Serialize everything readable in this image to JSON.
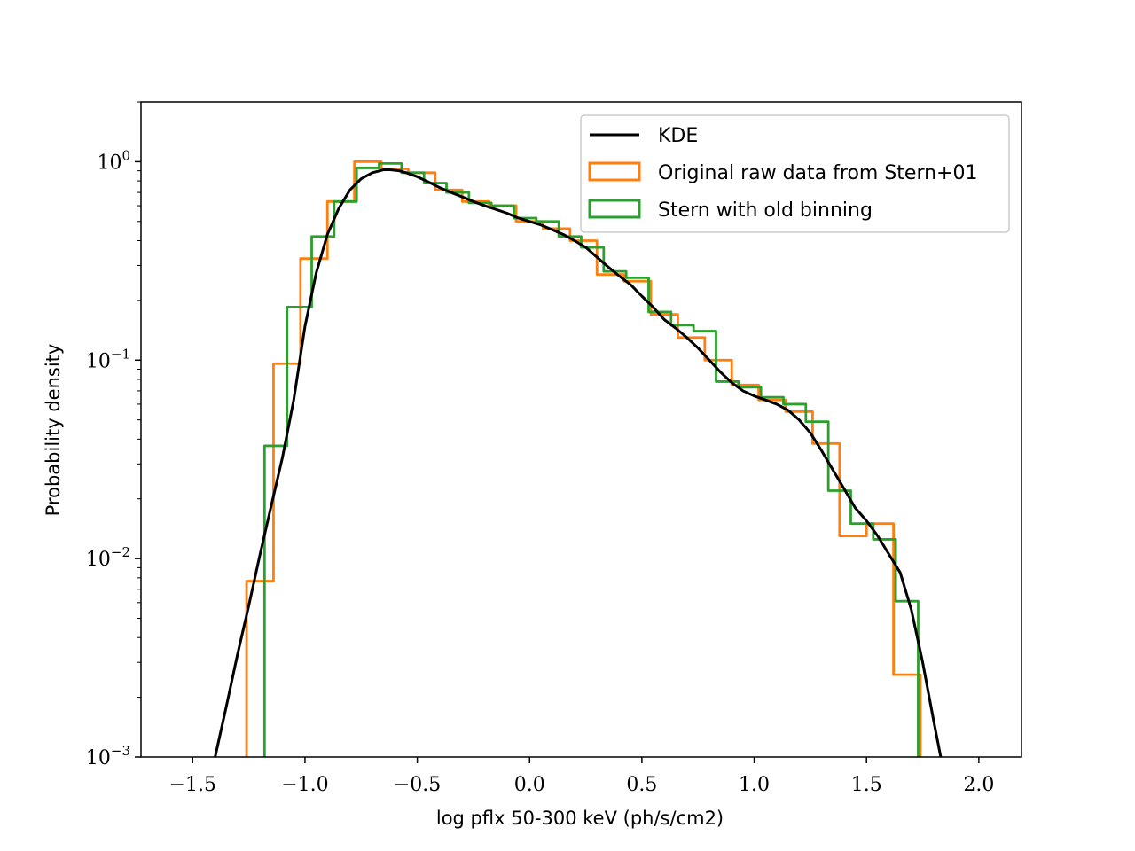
{
  "chart_data": {
    "type": "histogram-line",
    "xlabel": "log pflx 50-300 keV (ph/s/cm2)",
    "ylabel": "Probability density",
    "xlim": [
      -1.73,
      2.19
    ],
    "ylim": [
      0.001,
      2.0
    ],
    "yscale": "log",
    "grid": false,
    "legend_position": "top-right",
    "x_ticks": [
      {
        "value": -1.5,
        "label": "−1.5"
      },
      {
        "value": -1.0,
        "label": "−1.0"
      },
      {
        "value": -0.5,
        "label": "−0.5"
      },
      {
        "value": 0.0,
        "label": "0.0"
      },
      {
        "value": 0.5,
        "label": "0.5"
      },
      {
        "value": 1.0,
        "label": "1.0"
      },
      {
        "value": 1.5,
        "label": "1.5"
      },
      {
        "value": 2.0,
        "label": "2.0"
      }
    ],
    "y_ticks": [
      {
        "value": 1,
        "base": "10",
        "exp": "0"
      },
      {
        "value": 0.1,
        "base": "10",
        "exp": "−1"
      },
      {
        "value": 0.01,
        "base": "10",
        "exp": "−2"
      },
      {
        "value": 0.001,
        "base": "10",
        "exp": "−3"
      }
    ],
    "series": [
      {
        "name": "KDE",
        "kind": "line",
        "color": "#000000",
        "x": [
          -1.4,
          -1.35,
          -1.3,
          -1.25,
          -1.2,
          -1.15,
          -1.1,
          -1.05,
          -1.0,
          -0.95,
          -0.9,
          -0.85,
          -0.8,
          -0.75,
          -0.7,
          -0.65,
          -0.62,
          -0.58,
          -0.55,
          -0.5,
          -0.45,
          -0.4,
          -0.35,
          -0.3,
          -0.25,
          -0.2,
          -0.15,
          -0.1,
          -0.05,
          0.0,
          0.05,
          0.1,
          0.15,
          0.2,
          0.25,
          0.3,
          0.35,
          0.4,
          0.45,
          0.5,
          0.55,
          0.6,
          0.65,
          0.7,
          0.75,
          0.8,
          0.85,
          0.9,
          0.95,
          1.0,
          1.05,
          1.1,
          1.15,
          1.2,
          1.25,
          1.3,
          1.35,
          1.4,
          1.45,
          1.5,
          1.55,
          1.6,
          1.65,
          1.7,
          1.75,
          1.8,
          1.84
        ],
        "y": [
          0.001,
          0.0018,
          0.0033,
          0.0058,
          0.0105,
          0.0185,
          0.0324,
          0.0631,
          0.148,
          0.275,
          0.43,
          0.58,
          0.72,
          0.82,
          0.88,
          0.91,
          0.91,
          0.9,
          0.88,
          0.84,
          0.79,
          0.74,
          0.7,
          0.665,
          0.63,
          0.6,
          0.575,
          0.55,
          0.52,
          0.5,
          0.48,
          0.455,
          0.43,
          0.4,
          0.37,
          0.33,
          0.295,
          0.265,
          0.24,
          0.21,
          0.185,
          0.16,
          0.145,
          0.13,
          0.115,
          0.1,
          0.087,
          0.077,
          0.07,
          0.066,
          0.063,
          0.06,
          0.056,
          0.05,
          0.043,
          0.035,
          0.028,
          0.0225,
          0.018,
          0.0155,
          0.013,
          0.0105,
          0.0085,
          0.0055,
          0.003,
          0.0015,
          0.00088
        ]
      },
      {
        "name": "Original raw data from Stern+01",
        "kind": "step",
        "color": "#ff7f0e",
        "edges": [
          -1.26,
          -1.14,
          -1.02,
          -0.9,
          -0.78,
          -0.66,
          -0.54,
          -0.42,
          -0.3,
          -0.18,
          -0.06,
          0.06,
          0.18,
          0.3,
          0.42,
          0.54,
          0.66,
          0.78,
          0.9,
          1.02,
          1.14,
          1.26,
          1.38,
          1.5,
          1.62,
          1.74
        ],
        "values": [
          0.0077,
          0.096,
          0.325,
          0.63,
          1.0,
          0.92,
          0.88,
          0.72,
          0.63,
          0.6,
          0.5,
          0.46,
          0.4,
          0.27,
          0.25,
          0.17,
          0.13,
          0.1,
          0.075,
          0.063,
          0.055,
          0.038,
          0.013,
          0.015,
          0.0026
        ]
      },
      {
        "name": "Stern with old binning",
        "kind": "step",
        "color": "#2ca02c",
        "edges": [
          -1.18,
          -1.08,
          -0.97,
          -0.87,
          -0.77,
          -0.67,
          -0.57,
          -0.47,
          -0.37,
          -0.27,
          -0.17,
          -0.07,
          0.03,
          0.13,
          0.23,
          0.33,
          0.43,
          0.53,
          0.63,
          0.73,
          0.83,
          0.93,
          1.03,
          1.13,
          1.23,
          1.33,
          1.43,
          1.53,
          1.63,
          1.73
        ],
        "values": [
          0.037,
          0.185,
          0.42,
          0.63,
          0.93,
          0.98,
          0.88,
          0.78,
          0.7,
          0.62,
          0.6,
          0.52,
          0.5,
          0.42,
          0.37,
          0.28,
          0.26,
          0.175,
          0.15,
          0.14,
          0.078,
          0.073,
          0.065,
          0.06,
          0.049,
          0.022,
          0.015,
          0.0125,
          0.0061
        ]
      }
    ]
  }
}
